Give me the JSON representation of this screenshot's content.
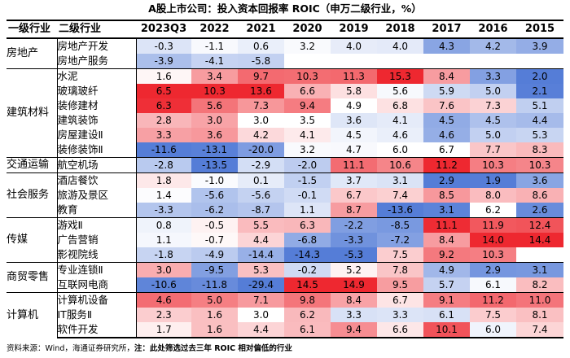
{
  "title": "A股上市公司：投入资本回报率 ROIC（申万二级行业，%）",
  "header": {
    "level1": "一级行业",
    "level2": "二级行业",
    "years": [
      "2023Q3",
      "2022",
      "2021",
      "2020",
      "2019",
      "2018",
      "2017",
      "2016",
      "2015"
    ]
  },
  "groups": [
    {
      "name": "房地产",
      "rows": [
        {
          "name": "房地产开发",
          "values": [
            "-0.3",
            "-1.1",
            "0.6",
            "3.2",
            "4.0",
            "4.0",
            "4.3",
            "4.2",
            "3.9"
          ]
        },
        {
          "name": "房地产服务",
          "values": [
            "-3.9",
            "-4.1",
            "-5.8",
            "",
            "",
            "",
            "",
            "",
            ""
          ]
        }
      ]
    },
    {
      "name": "建筑材料",
      "rows": [
        {
          "name": "水泥",
          "values": [
            "1.6",
            "3.4",
            "9.7",
            "10.3",
            "11.3",
            "15.3",
            "8.4",
            "3.3",
            "2.0"
          ]
        },
        {
          "name": "玻璃玻纤",
          "values": [
            "6.5",
            "10.3",
            "13.6",
            "6.6",
            "5.8",
            "5.6",
            "5.9",
            "5.0",
            "2.1"
          ]
        },
        {
          "name": "装修建材",
          "values": [
            "6.3",
            "5.6",
            "7.3",
            "9.4",
            "4.9",
            "6.8",
            "7.6",
            "7.3",
            "5.1"
          ]
        },
        {
          "name": "建筑装饰",
          "values": [
            "2.8",
            "3.0",
            "3.0",
            "3.5",
            "3.6",
            "4.1",
            "4.5",
            "4.5",
            "4.4"
          ]
        },
        {
          "name": "房屋建设Ⅱ",
          "values": [
            "3.3",
            "3.6",
            "4.2",
            "4.1",
            "4.5",
            "4.6",
            "4.6",
            "5.0",
            "5.3"
          ]
        },
        {
          "name": "装修装饰Ⅱ",
          "values": [
            "-11.6",
            "-13.1",
            "-20.0",
            "3.2",
            "4.7",
            "6.0",
            "6.7",
            "7.7",
            "8.3"
          ]
        }
      ]
    },
    {
      "name": "交通运输",
      "rows": [
        {
          "name": "航空机场",
          "values": [
            "-2.8",
            "-13.5",
            "-2.9",
            "-2.0",
            "11.1",
            "10.6",
            "11.2",
            "10.3",
            "10.3"
          ]
        }
      ]
    },
    {
      "name": "社会服务",
      "rows": [
        {
          "name": "酒店餐饮",
          "values": [
            "1.8",
            "-1.0",
            "0.1",
            "-1.5",
            "3.7",
            "3.1",
            "2.9",
            "1.9",
            "3.6"
          ]
        },
        {
          "name": "旅游及景区",
          "values": [
            "1.4",
            "-5.6",
            "-5.6",
            "-0.1",
            "6.7",
            "7.4",
            "8.5",
            "8.0",
            "8.6"
          ]
        },
        {
          "name": "教育",
          "values": [
            "-3.3",
            "-6.2",
            "-8.7",
            "1.1",
            "8.7",
            "-13.6",
            "3.1",
            "6.2",
            "2.6"
          ]
        }
      ]
    },
    {
      "name": "传媒",
      "rows": [
        {
          "name": "游戏Ⅱ",
          "values": [
            "0.8",
            "-0.5",
            "5.5",
            "6.3",
            "-2.2",
            "-8.5",
            "11.1",
            "11.9",
            "12.4"
          ]
        },
        {
          "name": "广告营销",
          "values": [
            "1.1",
            "-0.7",
            "4.4",
            "-6.8",
            "-3.3",
            "-7.2",
            "8.4",
            "14.0",
            "14.4"
          ]
        },
        {
          "name": "影视院线",
          "values": [
            "-1.8",
            "-4.9",
            "-14.4",
            "-14.3",
            "-5.3",
            "7.5",
            "9.2",
            "10.3",
            ""
          ]
        }
      ]
    },
    {
      "name": "商贸零售",
      "rows": [
        {
          "name": "专业连锁Ⅱ",
          "values": [
            "3.0",
            "-9.5",
            "5.3",
            "-0.2",
            "5.2",
            "7.8",
            "4.9",
            "2.9",
            "3.1"
          ]
        },
        {
          "name": "互联网电商",
          "values": [
            "-10.6",
            "-11.8",
            "-29.4",
            "14.5",
            "14.9",
            "9.5",
            "5.7",
            "6.1",
            "8.2"
          ]
        }
      ]
    },
    {
      "name": "计算机",
      "rows": [
        {
          "name": "计算机设备",
          "values": [
            "4.6",
            "5.0",
            "7.1",
            "9.8",
            "8.4",
            "6.7",
            "9.1",
            "11.2",
            "11.0"
          ]
        },
        {
          "name": "IT服务Ⅱ",
          "values": [
            "2.3",
            "1.6",
            "3.0",
            "6.2",
            "3.3",
            "3.3",
            "6.1",
            "7.5",
            "8.1"
          ]
        },
        {
          "name": "软件开发",
          "values": [
            "1.7",
            "1.6",
            "4.4",
            "6.1",
            "9.4",
            "6.6",
            "10.1",
            "6.0",
            "7.4"
          ]
        }
      ]
    }
  ],
  "footnote": {
    "source": "资料来源：Wind，海通证券研究所，",
    "note": "注：此处筛选过去三年 ROIC 相对偏低的行业"
  }
}
